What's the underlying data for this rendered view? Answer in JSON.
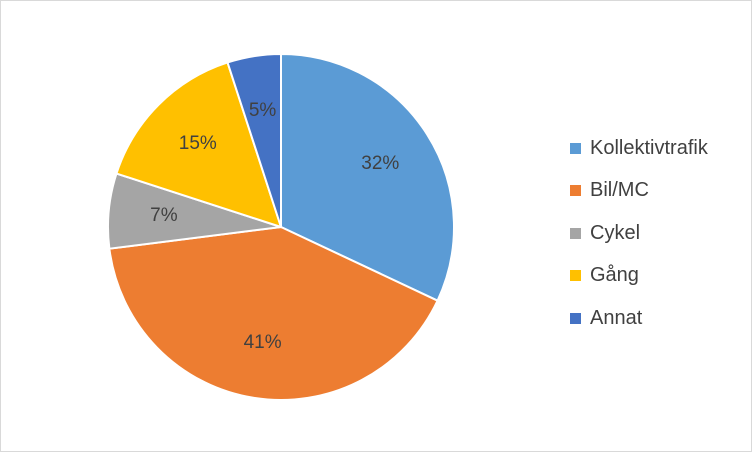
{
  "chart_data": {
    "type": "pie",
    "start_angle_deg": 0,
    "direction": "clockwise",
    "slices": [
      {
        "label": "Kollektivtrafik",
        "value": 32,
        "value_label": "32%",
        "color": "#5b9bd5"
      },
      {
        "label": "Bil/MC",
        "value": 41,
        "value_label": "41%",
        "color": "#ed7d31"
      },
      {
        "label": "Cykel",
        "value": 7,
        "value_label": "7%",
        "color": "#a5a5a5"
      },
      {
        "label": "Gång",
        "value": 15,
        "value_label": "15%",
        "color": "#ffc000"
      },
      {
        "label": "Annat",
        "value": 5,
        "value_label": "5%",
        "color": "#4472c4"
      }
    ],
    "legend_position": "right"
  }
}
